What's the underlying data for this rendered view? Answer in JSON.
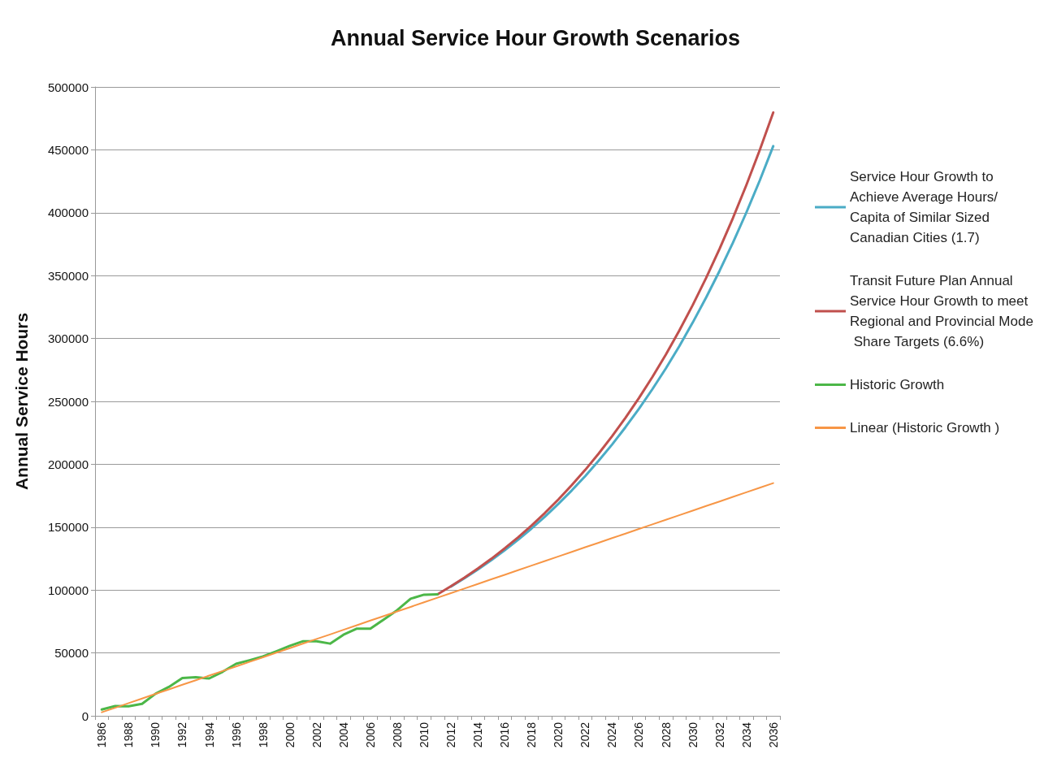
{
  "chart_data": {
    "type": "line",
    "title": "Annual Service Hour Growth Scenarios",
    "ylabel": "Annual Service Hours",
    "categories": [
      "1986",
      null,
      "1988",
      null,
      "1990",
      null,
      "1992",
      null,
      "1994",
      null,
      "1996",
      null,
      "1998",
      null,
      "2000",
      null,
      "2002",
      null,
      "2004",
      null,
      "2006",
      null,
      "2008",
      null,
      "2010",
      null,
      "2012",
      null,
      "2014",
      null,
      "2016",
      null,
      "2018",
      null,
      "2020",
      null,
      "2022",
      null,
      "2024",
      null,
      "2026",
      null,
      "2028",
      null,
      "2030",
      null,
      "2032",
      null,
      "2034",
      null,
      "2036"
    ],
    "series": [
      {
        "name": "Service Hour Growth to Achieve Average Hours/Capita of Similar Sized Canadian Cities (1.7)",
        "color": "#4bacc6",
        "values": [
          null,
          null,
          null,
          null,
          null,
          null,
          null,
          null,
          null,
          null,
          null,
          null,
          null,
          null,
          null,
          null,
          null,
          null,
          null,
          null,
          null,
          null,
          null,
          null,
          null,
          null,
          102800,
          109300,
          116300,
          123700,
          131600,
          140000,
          148900,
          158400,
          168500,
          179200,
          190600,
          202800,
          215700,
          229500,
          244100,
          259700,
          276200,
          293800,
          312600,
          332500,
          353700,
          376200,
          400200,
          425700,
          452900
        ]
      },
      {
        "name": "Transit Future Plan Annual Service Hour Growth to meet Regional and Provincial Mode Share Targets (6.6%)",
        "color": "#c0504d",
        "values": [
          null,
          null,
          null,
          null,
          null,
          null,
          null,
          null,
          null,
          null,
          null,
          null,
          null,
          null,
          null,
          null,
          null,
          null,
          null,
          null,
          null,
          null,
          null,
          null,
          null,
          96600,
          103000,
          109800,
          117100,
          124800,
          133100,
          141900,
          151300,
          161300,
          172000,
          183400,
          195500,
          208500,
          222300,
          237000,
          252700,
          269400,
          287200,
          306200,
          326500,
          348100,
          371200,
          395800,
          422000,
          449900,
          479700
        ]
      },
      {
        "name": "Historic Growth",
        "color": "#4cb748",
        "values": [
          5000,
          7800,
          7600,
          9500,
          17500,
          23000,
          30000,
          30700,
          29700,
          35000,
          41300,
          44200,
          47200,
          51300,
          55600,
          59300,
          59300,
          57400,
          64500,
          69300,
          69300,
          76600,
          84000,
          93100,
          96300,
          96600,
          null,
          null,
          null,
          null,
          null,
          null,
          null,
          null,
          null,
          null,
          null,
          null,
          null,
          null,
          null,
          null,
          null,
          null,
          null,
          null,
          null,
          null,
          null,
          null,
          null
        ]
      },
      {
        "name": "Linear (Historic Growth )",
        "color": "#f79646",
        "values": [
          2800,
          6400,
          10100,
          13700,
          17400,
          21000,
          24700,
          28300,
          32000,
          35600,
          39200,
          42900,
          46500,
          50200,
          53800,
          57500,
          61100,
          64700,
          68400,
          72000,
          75700,
          79300,
          83000,
          86600,
          90300,
          93900,
          97500,
          101200,
          104800,
          108500,
          112100,
          115800,
          119400,
          123100,
          126700,
          130300,
          134000,
          137600,
          141300,
          144900,
          148600,
          152200,
          155800,
          159500,
          163100,
          166800,
          170400,
          174100,
          177700,
          181400,
          185000
        ]
      }
    ],
    "ylim": [
      0,
      500000
    ],
    "yticks": [
      0,
      50000,
      100000,
      150000,
      200000,
      250000,
      300000,
      350000,
      400000,
      450000,
      500000
    ],
    "grid": "y",
    "legend": "right",
    "marker": "none"
  }
}
